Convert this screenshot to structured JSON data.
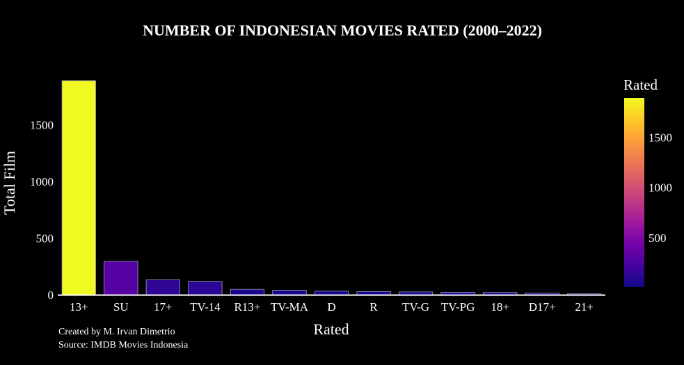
{
  "chart_data": {
    "type": "bar",
    "title": "NUMBER OF INDONESIAN MOVIES RATED (2000–2022)",
    "xlabel": "Rated",
    "ylabel": "Total Film",
    "categories": [
      "13+",
      "SU",
      "17+",
      "TV-14",
      "R13+",
      "TV-MA",
      "D",
      "R",
      "TV-G",
      "TV-PG",
      "18+",
      "D17+",
      "21+"
    ],
    "values": [
      1890,
      295,
      132,
      118,
      48,
      40,
      32,
      28,
      25,
      22,
      20,
      15,
      8
    ],
    "ylim": [
      0,
      1890
    ],
    "yticks": [
      0,
      500,
      1000,
      1500
    ],
    "grid": false,
    "colorbar": {
      "title": "Rated",
      "ticks": [
        500,
        1000,
        1500
      ],
      "range": [
        8,
        1890
      ],
      "colorscale": [
        "#0d0887",
        "#46039f",
        "#7201a8",
        "#9c179e",
        "#bd3786",
        "#d8576b",
        "#ed7953",
        "#fb9f3a",
        "#fdca26",
        "#f0f921"
      ]
    },
    "annotations": [
      "Created by M. Irvan Dimetrio",
      "Source: IMDB Movies Indonesia"
    ]
  },
  "colors": {
    "background": "#000000",
    "axis_line": "#ffffff",
    "bar_outline": "#a0a0c0"
  }
}
